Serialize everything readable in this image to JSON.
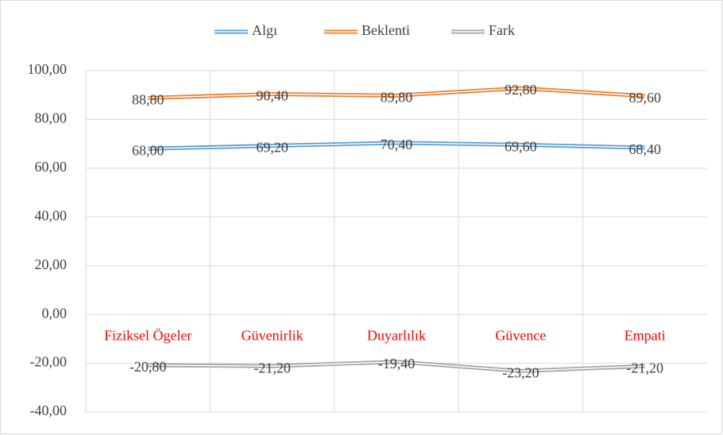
{
  "chart_data": {
    "type": "line",
    "categories": [
      "Fiziksel Ögeler",
      "Güvenirlik",
      "Duyarlılık",
      "Güvence",
      "Empati"
    ],
    "series": [
      {
        "name": "Algı",
        "color": "#5b9bd5",
        "values": [
          68,
          69.2,
          70.4,
          69.6,
          68.4
        ],
        "value_labels": [
          "68,00",
          "69,20",
          "70,40",
          "69,60",
          "68,40"
        ]
      },
      {
        "name": "Beklenti",
        "color": "#ed7d31",
        "values": [
          88.8,
          90.4,
          89.8,
          92.8,
          89.6
        ],
        "value_labels": [
          "88,80",
          "90,40",
          "89,80",
          "92,80",
          "89,60"
        ]
      },
      {
        "name": "Fark",
        "color": "#a5a5a5",
        "values": [
          -20.8,
          -21.2,
          -19.4,
          -23.2,
          -21.2
        ],
        "value_labels": [
          "-20,80",
          "-21,20",
          "-19,40",
          "-23,20",
          "-21,20"
        ]
      }
    ],
    "ylim": [
      -40,
      100
    ],
    "yticks": [
      {
        "value": -40,
        "label": "-40,00"
      },
      {
        "value": -20,
        "label": "-20,00"
      },
      {
        "value": 0,
        "label": "0,00"
      },
      {
        "value": 20,
        "label": "20,00"
      },
      {
        "value": 40,
        "label": "40,00"
      },
      {
        "value": 60,
        "label": "60,00"
      },
      {
        "value": 80,
        "label": "80,00"
      },
      {
        "value": 100,
        "label": "100,00"
      }
    ],
    "grid": true,
    "legend": "top",
    "category_label_color": "#ff0000"
  }
}
